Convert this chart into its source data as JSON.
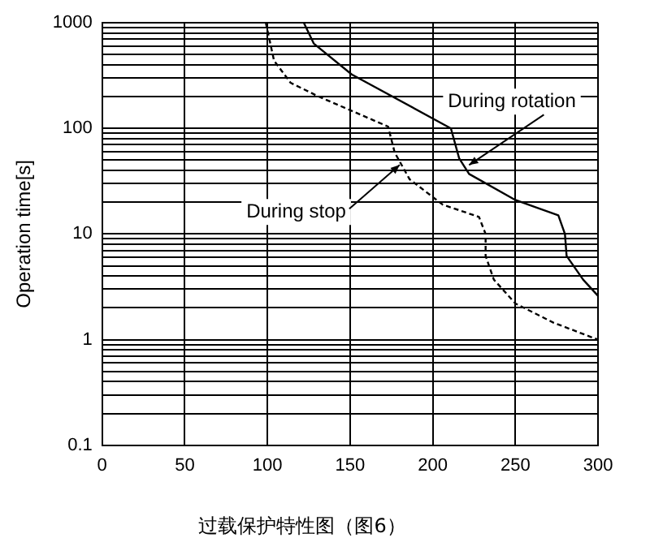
{
  "chart_data": {
    "type": "line",
    "title": "过载保护特性图（图6）",
    "ylabel": "Operation time[s]",
    "log": "y",
    "grid": true,
    "legend": false,
    "marker": "none",
    "xlim": [
      0,
      300
    ],
    "xticks": [
      0,
      50,
      100,
      150,
      200,
      250,
      300
    ],
    "ylim": [
      0.1,
      1000
    ],
    "yticks": [
      {
        "value": 0.1,
        "label": "0.1"
      },
      {
        "value": 0.2,
        "label": null
      },
      {
        "value": 0.3,
        "label": null
      },
      {
        "value": 0.4,
        "label": null
      },
      {
        "value": 0.5,
        "label": null
      },
      {
        "value": 0.6,
        "label": null
      },
      {
        "value": 0.7,
        "label": null
      },
      {
        "value": 0.8,
        "label": null
      },
      {
        "value": 0.9,
        "label": null
      },
      {
        "value": 1,
        "label": "1"
      },
      {
        "value": 2,
        "label": null
      },
      {
        "value": 3,
        "label": null
      },
      {
        "value": 4,
        "label": null
      },
      {
        "value": 5,
        "label": null
      },
      {
        "value": 6,
        "label": null
      },
      {
        "value": 7,
        "label": null
      },
      {
        "value": 8,
        "label": null
      },
      {
        "value": 9,
        "label": null
      },
      {
        "value": 10,
        "label": "10"
      },
      {
        "value": 20,
        "label": null
      },
      {
        "value": 30,
        "label": null
      },
      {
        "value": 40,
        "label": null
      },
      {
        "value": 50,
        "label": null
      },
      {
        "value": 60,
        "label": null
      },
      {
        "value": 70,
        "label": null
      },
      {
        "value": 80,
        "label": null
      },
      {
        "value": 90,
        "label": null
      },
      {
        "value": 100,
        "label": "100"
      },
      {
        "value": 200,
        "label": null
      },
      {
        "value": 300,
        "label": null
      },
      {
        "value": 400,
        "label": null
      },
      {
        "value": 500,
        "label": null
      },
      {
        "value": 600,
        "label": null
      },
      {
        "value": 700,
        "label": null
      },
      {
        "value": 800,
        "label": null
      },
      {
        "value": 900,
        "label": null
      },
      {
        "value": 1000,
        "label": "1000"
      }
    ],
    "series": [
      {
        "color": "#000000",
        "line_style": "solid",
        "x": [
          122,
          128,
          151,
          211,
          216,
          222,
          250,
          276,
          280,
          281,
          291,
          300
        ],
        "values": [
          1000,
          636,
          324,
          100,
          52,
          37,
          21,
          15,
          10,
          6.2,
          3.7,
          2.6
        ]
      },
      {
        "color": "#000000",
        "line_style": "dashed",
        "x": [
          99,
          104,
          114,
          131,
          173,
          177,
          186,
          206,
          228,
          232,
          232,
          237,
          250,
          273,
          300
        ],
        "values": [
          1000,
          437,
          270,
          200,
          104,
          59,
          33,
          19,
          14.5,
          10,
          6.2,
          3.7,
          2.2,
          1.45,
          1.0
        ]
      }
    ],
    "annotations": [
      {
        "text": "During rotation",
        "x": 222,
        "y": 45
      },
      {
        "text": "During stop",
        "x": 180,
        "y": 45
      }
    ]
  }
}
